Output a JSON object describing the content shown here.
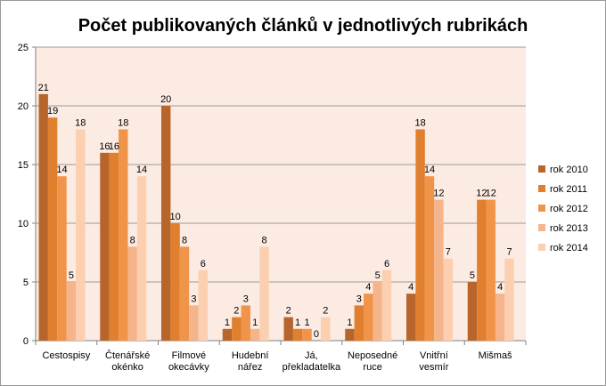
{
  "chart_data": {
    "type": "bar",
    "title": "Počet publikovaných článků v jednotlivých rubrikách",
    "categories": [
      [
        "Cestospisy"
      ],
      [
        "Čtenářské",
        "okénko"
      ],
      [
        "Filmové",
        "okecávky"
      ],
      [
        "Hudební",
        "nářez"
      ],
      [
        "Já,",
        "překladatelka"
      ],
      [
        "Neposedné",
        "ruce"
      ],
      [
        "Vnitřní",
        "vesmír"
      ],
      [
        "Mišmaš"
      ]
    ],
    "ylim": [
      0,
      25
    ],
    "yticks": [
      0,
      5,
      10,
      15,
      20,
      25
    ],
    "grid": true,
    "legend_position": "right",
    "series": [
      {
        "name": "rok 2010",
        "color": "#b8652b",
        "values": [
          21,
          16,
          20,
          1,
          2,
          1,
          4,
          5
        ]
      },
      {
        "name": "rok 2011",
        "color": "#e07f2e",
        "values": [
          19,
          16,
          10,
          2,
          1,
          3,
          18,
          12
        ]
      },
      {
        "name": "rok 2012",
        "color": "#f0944a",
        "values": [
          14,
          18,
          8,
          3,
          1,
          4,
          14,
          12
        ]
      },
      {
        "name": "rok 2013",
        "color": "#f6b48a",
        "values": [
          5,
          8,
          3,
          1,
          0,
          5,
          12,
          4
        ]
      },
      {
        "name": "rok 2014",
        "color": "#fbcfb0",
        "values": [
          18,
          14,
          6,
          8,
          2,
          6,
          7,
          7
        ]
      }
    ],
    "plot_background": "#fcebe2"
  }
}
